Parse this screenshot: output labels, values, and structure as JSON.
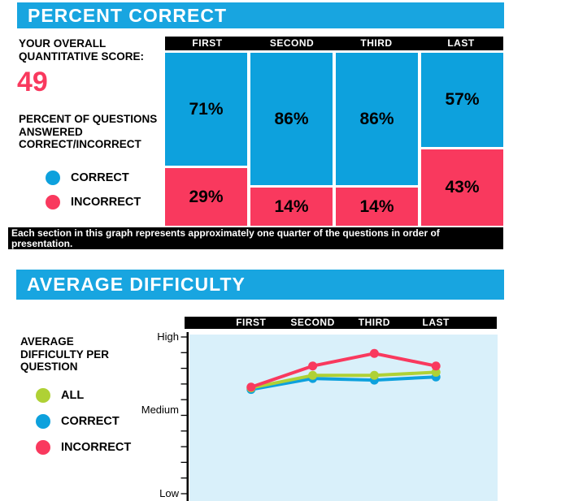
{
  "colors": {
    "header_cyan": "#18A5E0",
    "correct_blue": "#0DA1DD",
    "incorrect_pink": "#F9395E",
    "all_green": "#AFD135",
    "plot_background": "#D9F0FA",
    "bar_black": "#000000"
  },
  "section_percent": {
    "title": "PERCENT CORRECT",
    "score_label": "YOUR OVERALL\nQUANTITATIVE SCORE:",
    "score_value": "49",
    "description": "PERCENT OF QUESTIONS\nANSWERED\nCORRECT/INCORRECT",
    "legend": [
      {
        "label": "CORRECT",
        "color": "#0DA1DD"
      },
      {
        "label": "INCORRECT",
        "color": "#F9395E"
      }
    ],
    "footnote": "Each section in this graph represents approximately one quarter of the questions in order of\npresentation."
  },
  "section_difficulty": {
    "title": "AVERAGE DIFFICULTY",
    "description": "AVERAGE\nDIFFICULTY PER\nQUESTION",
    "legend": [
      {
        "label": "ALL",
        "color": "#AFD135"
      },
      {
        "label": "CORRECT",
        "color": "#0DA1DD"
      },
      {
        "label": "INCORRECT",
        "color": "#F9395E"
      }
    ]
  },
  "chart_data": [
    {
      "type": "bar",
      "subtype": "stacked-100-percent-mosaic",
      "title": "PERCENT CORRECT",
      "categories": [
        "FIRST",
        "SECOND",
        "THIRD",
        "LAST"
      ],
      "series": [
        {
          "name": "CORRECT",
          "color": "#0DA1DD",
          "values": [
            71,
            86,
            86,
            57
          ]
        },
        {
          "name": "INCORRECT",
          "color": "#F9395E",
          "values": [
            29,
            14,
            14,
            43
          ]
        }
      ],
      "value_suffix": "%",
      "legend_position": "left",
      "grid": false,
      "note": "Each section in this graph represents approximately one quarter of the questions in order of presentation."
    },
    {
      "type": "line",
      "title": "AVERAGE DIFFICULTY",
      "categories": [
        "FIRST",
        "SECOND",
        "THIRD",
        "LAST"
      ],
      "y_axis": {
        "labels": [
          "High",
          "Medium",
          "Low"
        ],
        "range": [
          1,
          3
        ],
        "tick_count": 11
      },
      "series": [
        {
          "name": "ALL",
          "color": "#AFD135",
          "values": [
            2.35,
            2.51,
            2.51,
            2.55
          ]
        },
        {
          "name": "CORRECT",
          "color": "#0DA1DD",
          "values": [
            2.33,
            2.47,
            2.45,
            2.49
          ]
        },
        {
          "name": "INCORRECT",
          "color": "#F9395E",
          "values": [
            2.36,
            2.63,
            2.79,
            2.63
          ]
        }
      ],
      "legend_position": "left",
      "grid": false
    }
  ]
}
